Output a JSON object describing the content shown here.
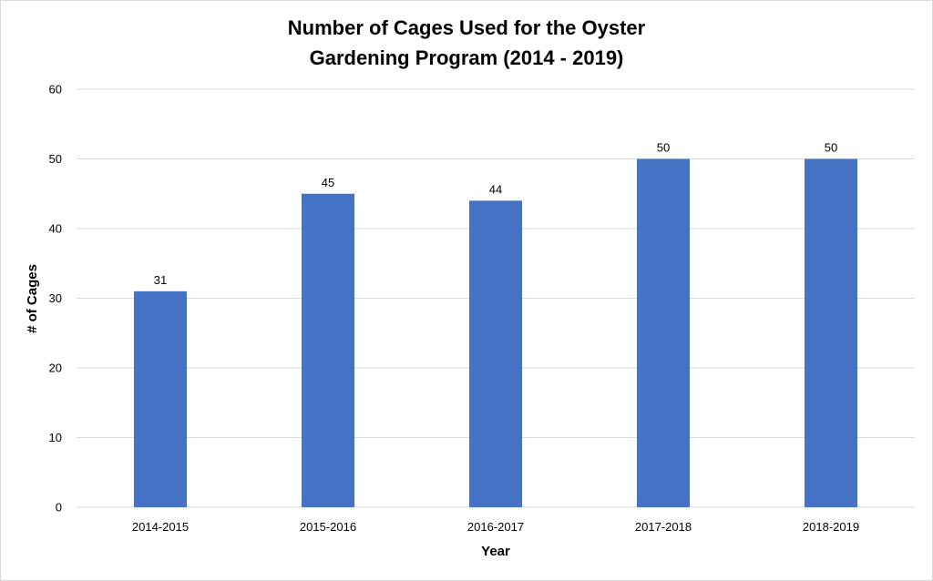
{
  "chart_data": {
    "type": "bar",
    "title_lines": [
      "Number of Cages Used for the Oyster",
      "Gardening Program (2014 - 2019)"
    ],
    "xlabel": "Year",
    "ylabel": "# of Cages",
    "categories": [
      "2014-2015",
      "2015-2016",
      "2016-2017",
      "2017-2018",
      "2018-2019"
    ],
    "values": [
      31,
      45,
      44,
      50,
      50
    ],
    "ylim": [
      0,
      60
    ],
    "yticks": [
      "0",
      "10",
      "20",
      "30",
      "40",
      "50",
      "60"
    ],
    "grid": true,
    "legend": "none",
    "bar_color": "#4472c4",
    "grid_color": "#d9d9d9"
  }
}
